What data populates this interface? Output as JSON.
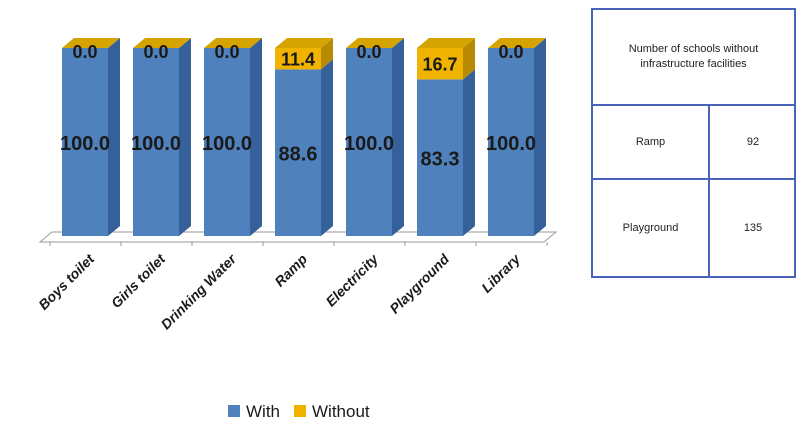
{
  "chart_data": {
    "type": "bar",
    "stacked": true,
    "categories": [
      "Boys toilet",
      "Girls toilet",
      "Drinking Water",
      "Ramp",
      "Electricity",
      "Playground",
      "Library"
    ],
    "series": [
      {
        "name": "With",
        "values": [
          100.0,
          100.0,
          100.0,
          88.6,
          100.0,
          83.3,
          100.0
        ],
        "color": "#4f81bd"
      },
      {
        "name": "Without",
        "values": [
          0.0,
          0.0,
          0.0,
          11.4,
          0.0,
          16.7,
          0.0
        ],
        "color": "#f0b400"
      }
    ],
    "value_labels": {
      "with": [
        "100.0",
        "100.0",
        "100.0",
        "88.6",
        "100.0",
        "83.3",
        "100.0"
      ],
      "without": [
        "0.0",
        "0.0",
        "0.0",
        "11.4",
        "0.0",
        "16.7",
        "0.0"
      ]
    },
    "ylim": [
      0,
      100
    ],
    "legend_position": "bottom",
    "grid": false
  },
  "table": {
    "header": "Number of schools without infrastructure facilities",
    "rows": [
      {
        "label": "Ramp",
        "value": "92"
      },
      {
        "label": "Playground",
        "value": "135"
      }
    ]
  }
}
